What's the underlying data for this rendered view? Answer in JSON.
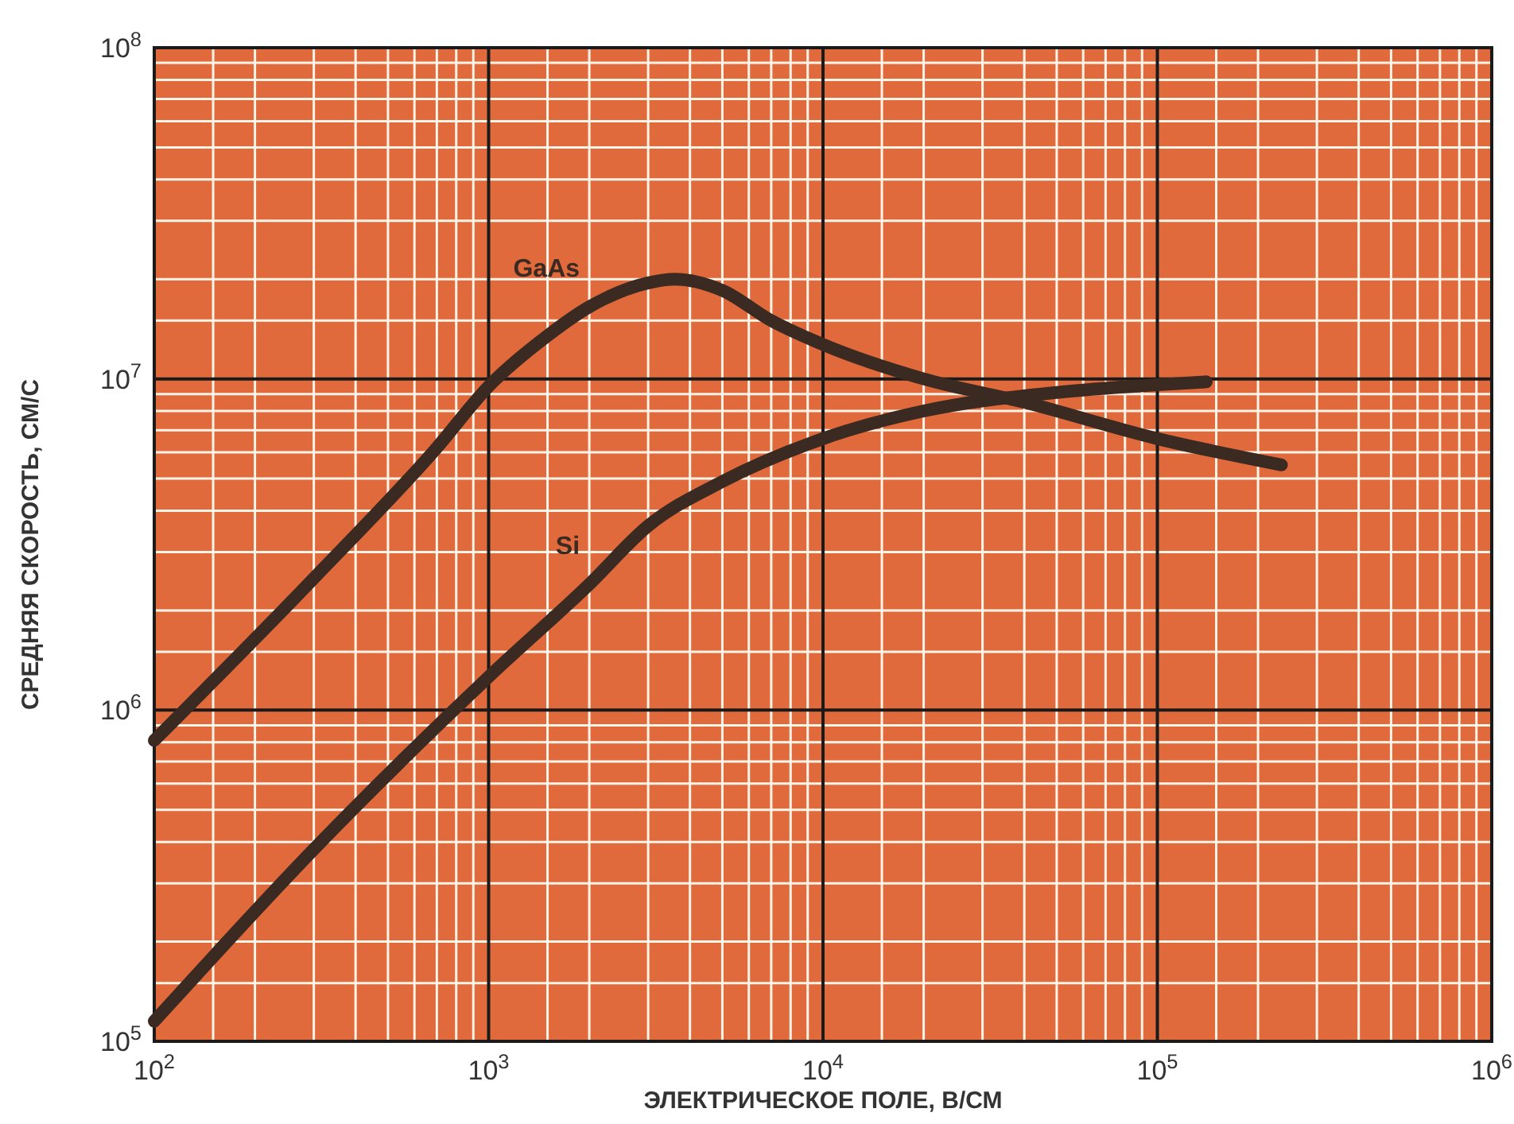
{
  "chart_data": {
    "type": "line",
    "xlabel": "ЭЛЕКТРИЧЕСКОЕ ПОЛЕ, В/СМ",
    "ylabel": "СРЕДНЯЯ СКОРОСТЬ, СМ/С",
    "log": "xy",
    "grid": true,
    "marker": "none",
    "line_style": "solid",
    "xlim": [
      100,
      1000000
    ],
    "ylim": [
      100000,
      100000000
    ],
    "xticks": [
      {
        "value": 100,
        "label": "10$^{2}$"
      },
      {
        "value": 1000,
        "label": "10$^{3}$"
      },
      {
        "value": 10000,
        "label": "10$^{4}$"
      },
      {
        "value": 100000,
        "label": "10$^{5}$"
      },
      {
        "value": 1000000,
        "label": "10$^{6}$"
      }
    ],
    "yticks": [
      {
        "value": 100000,
        "label": "10$^{5}$"
      },
      {
        "value": 1000000,
        "label": "10$^{6}$"
      },
      {
        "value": 10000000,
        "label": "10$^{7}$"
      },
      {
        "value": 100000000,
        "label": "10$^{8}$"
      }
    ],
    "series": [
      {
        "name": "GaAs",
        "color": "#3a2a22",
        "x": [
          100,
          300,
          700,
          1000,
          1500,
          2000,
          3000,
          3600,
          5000,
          7000,
          10000,
          20000,
          40000,
          100000,
          235000
        ],
        "values": [
          810000,
          2500000,
          6200000,
          9500000,
          13500000,
          16500000,
          19500000,
          20000000,
          18500000,
          15000000,
          12700000,
          10000000,
          8500000,
          6600000,
          5500000
        ]
      },
      {
        "name": "Si",
        "color": "#3a2a22",
        "x": [
          100,
          300,
          1000,
          2000,
          3000,
          5000,
          10000,
          20000,
          50000,
          100000,
          140000
        ],
        "values": [
          115000,
          380000,
          1260000,
          2400000,
          3600000,
          4900000,
          6600000,
          8000000,
          9100000,
          9600000,
          9800000
        ]
      }
    ]
  }
}
